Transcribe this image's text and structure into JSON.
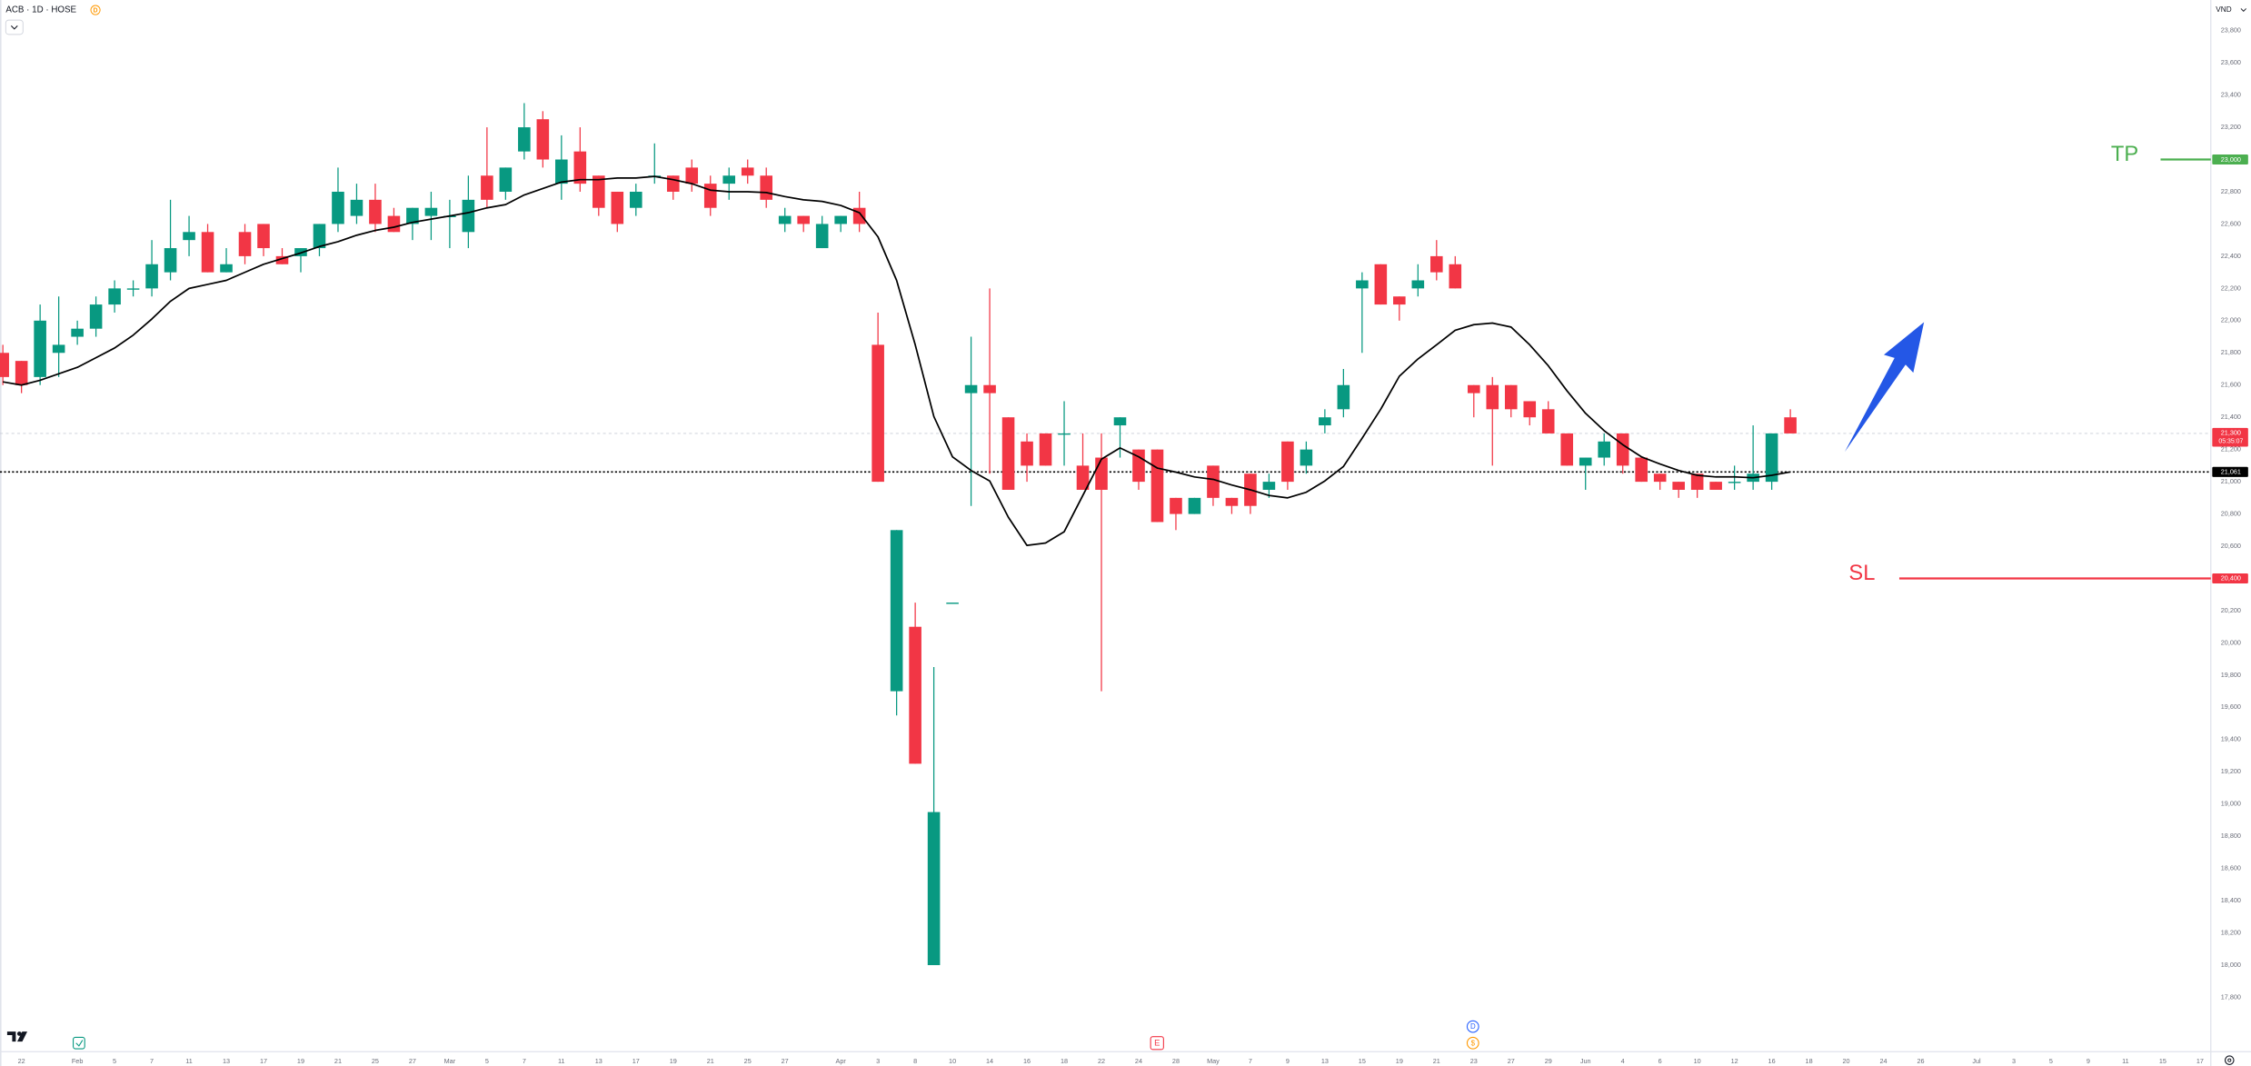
{
  "header": {
    "symbol": "ACB · 1D · HOSE",
    "badge": "D",
    "currency": "VND"
  },
  "events": {
    "earnings": "E",
    "dividend": "D",
    "split": "$"
  },
  "chart_data": {
    "type": "candlestick",
    "up_color": "#089981",
    "down_color": "#f23645",
    "grid": false,
    "ylim": [
      17650,
      23990
    ],
    "yticks": [
      {
        "value": 17800,
        "label": "17,800"
      },
      {
        "value": 18000,
        "label": "18,000"
      },
      {
        "value": 18200,
        "label": "18,200"
      },
      {
        "value": 18400,
        "label": "18,400"
      },
      {
        "value": 18600,
        "label": "18,600"
      },
      {
        "value": 18800,
        "label": "18,800"
      },
      {
        "value": 19000,
        "label": "19,000"
      },
      {
        "value": 19200,
        "label": "19,200"
      },
      {
        "value": 19400,
        "label": "19,400"
      },
      {
        "value": 19600,
        "label": "19,600"
      },
      {
        "value": 19800,
        "label": "19,800"
      },
      {
        "value": 20000,
        "label": "20,000"
      },
      {
        "value": 20200,
        "label": "20,200"
      },
      {
        "value": 20400,
        "label": "20,400"
      },
      {
        "value": 20600,
        "label": "20,600"
      },
      {
        "value": 20800,
        "label": "20,800"
      },
      {
        "value": 21000,
        "label": "21,000"
      },
      {
        "value": 21200,
        "label": "21,200"
      },
      {
        "value": 21400,
        "label": "21,400"
      },
      {
        "value": 21600,
        "label": "21,600"
      },
      {
        "value": 21800,
        "label": "21,800"
      },
      {
        "value": 22000,
        "label": "22,000"
      },
      {
        "value": 22200,
        "label": "22,200"
      },
      {
        "value": 22400,
        "label": "22,400"
      },
      {
        "value": 22600,
        "label": "22,600"
      },
      {
        "value": 22800,
        "label": "22,800"
      },
      {
        "value": 23000,
        "label": "23,000"
      },
      {
        "value": 23200,
        "label": "23,200"
      },
      {
        "value": 23400,
        "label": "23,400"
      },
      {
        "value": 23600,
        "label": "23,600"
      },
      {
        "value": 23800,
        "label": "23,800"
      }
    ],
    "categories": [
      null,
      "22",
      null,
      null,
      "Feb",
      null,
      "5",
      null,
      "7",
      null,
      "11",
      null,
      "13",
      null,
      "17",
      null,
      "19",
      null,
      "21",
      null,
      "25",
      null,
      "27",
      null,
      "Mar",
      null,
      "5",
      null,
      "7",
      null,
      "11",
      null,
      "13",
      null,
      "17",
      null,
      "19",
      null,
      "21",
      null,
      "25",
      null,
      "27",
      null,
      null,
      "Apr",
      null,
      "3",
      null,
      "8",
      null,
      "10",
      null,
      "14",
      null,
      "16",
      null,
      "18",
      null,
      "22",
      null,
      "24",
      null,
      "28",
      null,
      "May",
      null,
      "7",
      null,
      "9",
      null,
      "13",
      null,
      "15",
      null,
      "19",
      null,
      "21",
      null,
      "23",
      null,
      "27",
      null,
      "29",
      null,
      "Jun",
      null,
      "4",
      null,
      "6",
      null,
      "10",
      null,
      "12",
      null,
      "16",
      null,
      "18",
      null,
      "20",
      null,
      "24",
      null,
      "26",
      null,
      null,
      "Jul",
      null,
      "3",
      null,
      "5",
      null,
      "9",
      null,
      "11",
      null,
      "15",
      null,
      "17"
    ],
    "ohlc": {
      "open": [
        21800,
        21750,
        21650,
        21800,
        21900,
        21950,
        22100,
        22200,
        22200,
        22300,
        22500,
        22550,
        22300,
        22550,
        22600,
        22400,
        22400,
        22450,
        22600,
        22650,
        22750,
        22650,
        22600,
        22650,
        22650,
        22550,
        22900,
        22800,
        23050,
        23250,
        22850,
        23050,
        22900,
        22800,
        22700,
        22900,
        22900,
        22950,
        22850,
        22850,
        22950,
        22900,
        22600,
        22650,
        22450,
        22600,
        22700,
        21850,
        19700,
        20100,
        18000,
        20250,
        21550,
        21600,
        21400,
        21250,
        21300,
        21300,
        21100,
        21150,
        21350,
        21200,
        21200,
        20900,
        20800,
        21100,
        20900,
        21050,
        20950,
        21250,
        21100,
        21350,
        21450,
        22200,
        22350,
        22150,
        22200,
        22400,
        22350,
        21600,
        21600,
        21600,
        21500,
        21450,
        21300,
        21100,
        21150,
        21300,
        21150,
        21050,
        21000,
        21050,
        21000,
        21000,
        21000,
        21000,
        21400,
        null,
        null,
        null,
        null,
        null,
        null,
        null,
        null,
        null,
        null,
        null,
        null,
        null,
        null,
        null,
        null,
        null,
        null,
        null,
        null,
        null,
        null
      ],
      "high": [
        21850,
        21750,
        22100,
        22150,
        22000,
        22150,
        22250,
        22250,
        22500,
        22750,
        22650,
        22600,
        22450,
        22600,
        22600,
        22450,
        22450,
        22600,
        22950,
        22850,
        22850,
        22700,
        22700,
        22800,
        22750,
        22900,
        23200,
        22950,
        23350,
        23300,
        23150,
        23200,
        22900,
        22800,
        22850,
        23100,
        22900,
        23000,
        22900,
        22950,
        23000,
        22950,
        22700,
        22650,
        22650,
        22650,
        22800,
        22050,
        20700,
        20250,
        19850,
        20250,
        21900,
        22200,
        21400,
        21300,
        21300,
        21500,
        21300,
        21300,
        21400,
        21200,
        21200,
        20900,
        20900,
        21100,
        20900,
        21050,
        21050,
        21250,
        21250,
        21450,
        21700,
        22300,
        22350,
        22150,
        22350,
        22500,
        22400,
        21600,
        21650,
        21600,
        21500,
        21500,
        21300,
        21150,
        21300,
        21300,
        21150,
        21050,
        21000,
        21050,
        21000,
        21100,
        21350,
        21300,
        21450,
        null,
        null,
        null,
        null,
        null,
        null,
        null,
        null,
        null,
        null,
        null,
        null,
        null,
        null,
        null,
        null,
        null,
        null,
        null,
        null,
        null,
        null
      ],
      "low": [
        21600,
        21550,
        21600,
        21650,
        21850,
        21900,
        22050,
        22150,
        22150,
        22250,
        22400,
        22300,
        22300,
        22350,
        22400,
        22350,
        22300,
        22400,
        22550,
        22600,
        22550,
        22550,
        22500,
        22500,
        22450,
        22450,
        22700,
        22750,
        23000,
        22950,
        22750,
        22800,
        22650,
        22550,
        22650,
        22850,
        22750,
        22800,
        22650,
        22750,
        22850,
        22700,
        22550,
        22550,
        22450,
        22550,
        22550,
        21000,
        19550,
        19250,
        18000,
        20250,
        20850,
        21050,
        20950,
        21000,
        21100,
        21100,
        20950,
        19700,
        21150,
        20950,
        20750,
        20700,
        20800,
        20850,
        20800,
        20800,
        20900,
        20950,
        21050,
        21300,
        21400,
        21800,
        22100,
        22000,
        22150,
        22250,
        22200,
        21400,
        21100,
        21400,
        21350,
        21300,
        21100,
        20950,
        21100,
        21050,
        21000,
        20950,
        20900,
        20900,
        20950,
        20950,
        20950,
        20950,
        21300,
        null,
        null,
        null,
        null,
        null,
        null,
        null,
        null,
        null,
        null,
        null,
        null,
        null,
        null,
        null,
        null,
        null,
        null,
        null,
        null,
        null,
        null
      ],
      "close": [
        21650,
        21600,
        22000,
        21850,
        21950,
        22100,
        22200,
        22200,
        22350,
        22450,
        22550,
        22300,
        22350,
        22400,
        22450,
        22350,
        22450,
        22600,
        22800,
        22750,
        22600,
        22550,
        22700,
        22700,
        22650,
        22750,
        22750,
        22950,
        23200,
        23000,
        23000,
        22850,
        22700,
        22600,
        22800,
        22900,
        22800,
        22850,
        22700,
        22900,
        22900,
        22750,
        22650,
        22600,
        22600,
        22650,
        22600,
        21000,
        20700,
        19250,
        18950,
        20250,
        21600,
        21550,
        20950,
        21100,
        21100,
        21300,
        20950,
        20950,
        21400,
        21000,
        20750,
        20800,
        20900,
        20900,
        20850,
        20850,
        21000,
        21000,
        21200,
        21400,
        21600,
        22250,
        22100,
        22100,
        22250,
        22300,
        22200,
        21550,
        21450,
        21450,
        21400,
        21300,
        21100,
        21150,
        21250,
        21100,
        21000,
        21000,
        20950,
        20950,
        20950,
        21000,
        21050,
        21300,
        21300,
        null,
        null,
        null,
        null,
        null,
        null,
        null,
        null,
        null,
        null,
        null,
        null,
        null,
        null,
        null,
        null,
        null,
        null,
        null,
        null,
        null,
        null
      ]
    },
    "ma": {
      "color": "#000000",
      "last_label": "21,061",
      "values": [
        21620,
        21600,
        21630,
        21670,
        21710,
        21770,
        21830,
        21910,
        22010,
        22120,
        22200,
        22225,
        22250,
        22300,
        22350,
        22385,
        22420,
        22460,
        22490,
        22530,
        22560,
        22580,
        22610,
        22630,
        22650,
        22670,
        22700,
        22720,
        22780,
        22820,
        22860,
        22875,
        22875,
        22885,
        22885,
        22895,
        22875,
        22850,
        22810,
        22800,
        22800,
        22795,
        22770,
        22750,
        22740,
        22715,
        22670,
        22520,
        22250,
        21850,
        21405,
        21155,
        21070,
        21005,
        20780,
        20605,
        20620,
        20690,
        20915,
        21140,
        21210,
        21155,
        21085,
        21060,
        21030,
        21015,
        20980,
        20950,
        20915,
        20900,
        20935,
        21005,
        21095,
        21270,
        21450,
        21655,
        21762,
        21850,
        21940,
        21975,
        21985,
        21960,
        21850,
        21720,
        21565,
        21425,
        21317,
        21230,
        21155,
        21110,
        21070,
        21040,
        21030,
        21030,
        21025,
        21040,
        21061,
        null,
        null,
        null,
        null,
        null,
        null,
        null,
        null,
        null,
        null,
        null,
        null,
        null,
        null,
        null,
        null,
        null,
        null,
        null,
        null,
        null,
        null
      ]
    },
    "last_price": {
      "value": 21300,
      "label": "21,300",
      "countdown": "05:35:07",
      "color": "#f23645"
    },
    "levels": [
      {
        "name": "TP",
        "value": 23000,
        "label": "23,000",
        "color": "#4caf50"
      },
      {
        "name": "SL",
        "value": 20400,
        "label": "20,400",
        "color": "#f23645"
      }
    ]
  }
}
